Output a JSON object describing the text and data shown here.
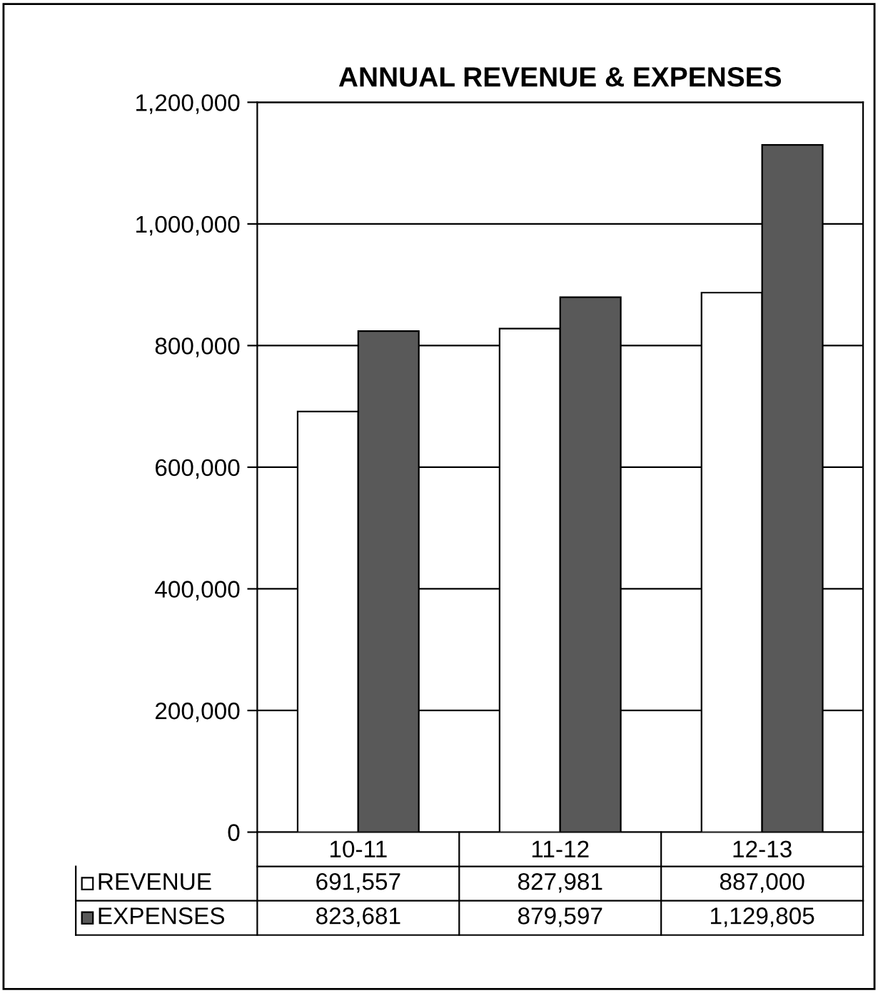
{
  "chart_data": {
    "type": "bar",
    "title": "ANNUAL REVENUE & EXPENSES",
    "categories": [
      "10-11",
      "11-12",
      "12-13"
    ],
    "series": [
      {
        "name": "REVENUE",
        "color": "#ffffff",
        "values": [
          691557,
          827981,
          887000
        ],
        "value_labels": [
          "691,557",
          "827,981",
          "887,000"
        ]
      },
      {
        "name": "EXPENSES",
        "color": "#595959",
        "values": [
          823681,
          879597,
          1129805
        ],
        "value_labels": [
          "823,681",
          "879,597",
          "1,129,805"
        ]
      }
    ],
    "ylim": [
      0,
      1200000
    ],
    "yticks": [
      {
        "value": 0,
        "label": "0"
      },
      {
        "value": 200000,
        "label": "200,000"
      },
      {
        "value": 400000,
        "label": "400,000"
      },
      {
        "value": 600000,
        "label": "600,000"
      },
      {
        "value": 800000,
        "label": "800,000"
      },
      {
        "value": 1000000,
        "label": "1,000,000"
      },
      {
        "value": 1200000,
        "label": "1,200,000"
      }
    ],
    "grid": "y",
    "legend": "bottom"
  }
}
